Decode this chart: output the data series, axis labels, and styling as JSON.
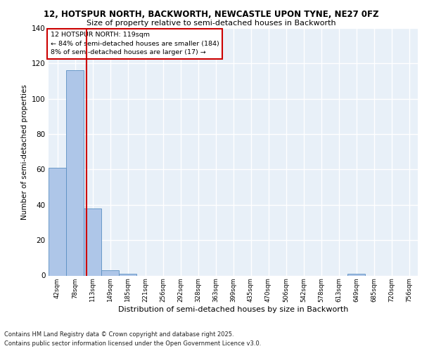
{
  "title1": "12, HOTSPUR NORTH, BACKWORTH, NEWCASTLE UPON TYNE, NE27 0FZ",
  "title2": "Size of property relative to semi-detached houses in Backworth",
  "xlabel": "Distribution of semi-detached houses by size in Backworth",
  "ylabel": "Number of semi-detached properties",
  "footnote1": "Contains HM Land Registry data © Crown copyright and database right 2025.",
  "footnote2": "Contains public sector information licensed under the Open Government Licence v3.0.",
  "bin_labels": [
    "42sqm",
    "78sqm",
    "113sqm",
    "149sqm",
    "185sqm",
    "221sqm",
    "256sqm",
    "292sqm",
    "328sqm",
    "363sqm",
    "399sqm",
    "435sqm",
    "470sqm",
    "506sqm",
    "542sqm",
    "578sqm",
    "613sqm",
    "649sqm",
    "685sqm",
    "720sqm",
    "756sqm"
  ],
  "bar_values": [
    61,
    116,
    38,
    3,
    1,
    0,
    0,
    0,
    0,
    0,
    0,
    0,
    0,
    0,
    0,
    0,
    0,
    1,
    0,
    0,
    0
  ],
  "bar_color": "#aec6e8",
  "bar_edge_color": "#5a8fc2",
  "property_line_color": "#cc0000",
  "annotation_title": "12 HOTSPUR NORTH: 119sqm",
  "annotation_line1": "← 84% of semi-detached houses are smaller (184)",
  "annotation_line2": "8% of semi-detached houses are larger (17) →",
  "annotation_box_color": "#cc0000",
  "ylim": [
    0,
    140
  ],
  "yticks": [
    0,
    20,
    40,
    60,
    80,
    100,
    120,
    140
  ],
  "background_color": "#e8f0f8",
  "grid_color": "#ffffff"
}
